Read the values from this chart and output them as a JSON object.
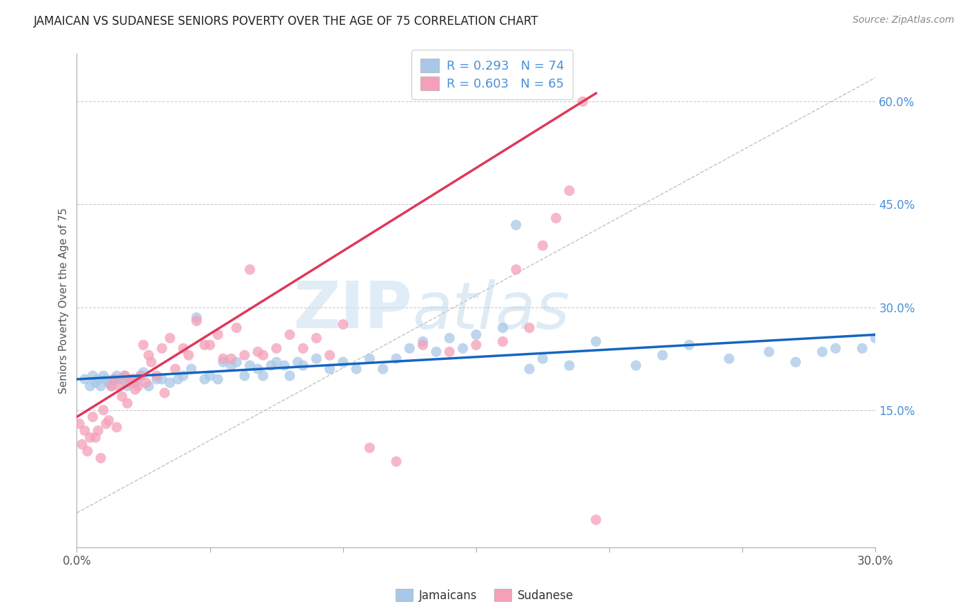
{
  "title": "JAMAICAN VS SUDANESE SENIORS POVERTY OVER THE AGE OF 75 CORRELATION CHART",
  "source": "Source: ZipAtlas.com",
  "ylabel": "Seniors Poverty Over the Age of 75",
  "xlim": [
    0.0,
    0.3
  ],
  "ylim": [
    -0.05,
    0.67
  ],
  "x_tick_positions": [
    0.0,
    0.05,
    0.1,
    0.15,
    0.2,
    0.25,
    0.3
  ],
  "x_tick_labels": [
    "0.0%",
    "",
    "",
    "",
    "",
    "",
    "30.0%"
  ],
  "y_ticks_right": [
    0.15,
    0.3,
    0.45,
    0.6
  ],
  "y_tick_labels_right": [
    "15.0%",
    "30.0%",
    "45.0%",
    "60.0%"
  ],
  "jamaican_color": "#a8c8e8",
  "sudanese_color": "#f4a0b8",
  "jamaican_R": 0.293,
  "jamaican_N": 74,
  "sudanese_R": 0.603,
  "sudanese_N": 65,
  "blue_line_color": "#1565c0",
  "pink_line_color": "#e0365a",
  "grid_color": "#cccccc",
  "background_color": "#ffffff",
  "watermark_text": "ZIPatlas",
  "jamaican_x": [
    0.003,
    0.005,
    0.006,
    0.007,
    0.008,
    0.009,
    0.01,
    0.011,
    0.012,
    0.013,
    0.014,
    0.015,
    0.016,
    0.017,
    0.018,
    0.019,
    0.02,
    0.021,
    0.022,
    0.024,
    0.025,
    0.027,
    0.03,
    0.032,
    0.035,
    0.038,
    0.04,
    0.043,
    0.045,
    0.048,
    0.05,
    0.053,
    0.055,
    0.058,
    0.06,
    0.063,
    0.065,
    0.068,
    0.07,
    0.073,
    0.075,
    0.078,
    0.08,
    0.083,
    0.085,
    0.09,
    0.095,
    0.1,
    0.105,
    0.11,
    0.115,
    0.12,
    0.125,
    0.13,
    0.135,
    0.14,
    0.145,
    0.15,
    0.16,
    0.165,
    0.17,
    0.175,
    0.185,
    0.195,
    0.21,
    0.22,
    0.23,
    0.245,
    0.26,
    0.27,
    0.28,
    0.285,
    0.295,
    0.3
  ],
  "jamaican_y": [
    0.195,
    0.185,
    0.2,
    0.19,
    0.195,
    0.185,
    0.2,
    0.195,
    0.19,
    0.185,
    0.195,
    0.2,
    0.195,
    0.195,
    0.2,
    0.185,
    0.195,
    0.195,
    0.19,
    0.2,
    0.205,
    0.185,
    0.195,
    0.195,
    0.19,
    0.195,
    0.2,
    0.21,
    0.285,
    0.195,
    0.2,
    0.195,
    0.22,
    0.215,
    0.22,
    0.2,
    0.215,
    0.21,
    0.2,
    0.215,
    0.22,
    0.215,
    0.2,
    0.22,
    0.215,
    0.225,
    0.21,
    0.22,
    0.21,
    0.225,
    0.21,
    0.225,
    0.24,
    0.25,
    0.235,
    0.255,
    0.24,
    0.26,
    0.27,
    0.42,
    0.21,
    0.225,
    0.215,
    0.25,
    0.215,
    0.23,
    0.245,
    0.225,
    0.235,
    0.22,
    0.235,
    0.24,
    0.24,
    0.255
  ],
  "sudanese_x": [
    0.001,
    0.002,
    0.003,
    0.004,
    0.005,
    0.006,
    0.007,
    0.008,
    0.009,
    0.01,
    0.011,
    0.012,
    0.013,
    0.014,
    0.015,
    0.016,
    0.017,
    0.018,
    0.019,
    0.02,
    0.021,
    0.022,
    0.023,
    0.024,
    0.025,
    0.026,
    0.027,
    0.028,
    0.03,
    0.032,
    0.033,
    0.035,
    0.037,
    0.04,
    0.042,
    0.045,
    0.048,
    0.05,
    0.053,
    0.055,
    0.058,
    0.06,
    0.063,
    0.065,
    0.068,
    0.07,
    0.075,
    0.08,
    0.085,
    0.09,
    0.095,
    0.1,
    0.11,
    0.12,
    0.13,
    0.14,
    0.15,
    0.16,
    0.165,
    0.17,
    0.175,
    0.18,
    0.185,
    0.19,
    0.195
  ],
  "sudanese_y": [
    0.13,
    0.1,
    0.12,
    0.09,
    0.11,
    0.14,
    0.11,
    0.12,
    0.08,
    0.15,
    0.13,
    0.135,
    0.185,
    0.195,
    0.125,
    0.185,
    0.17,
    0.2,
    0.16,
    0.19,
    0.195,
    0.18,
    0.185,
    0.2,
    0.245,
    0.19,
    0.23,
    0.22,
    0.2,
    0.24,
    0.175,
    0.255,
    0.21,
    0.24,
    0.23,
    0.28,
    0.245,
    0.245,
    0.26,
    0.225,
    0.225,
    0.27,
    0.23,
    0.355,
    0.235,
    0.23,
    0.24,
    0.26,
    0.24,
    0.255,
    0.23,
    0.275,
    0.095,
    0.075,
    0.245,
    0.235,
    0.245,
    0.25,
    0.355,
    0.27,
    0.39,
    0.43,
    0.47,
    0.6,
    -0.01
  ],
  "diag_line_x": [
    0.0,
    0.3
  ],
  "diag_line_y": [
    0.0,
    0.635
  ]
}
